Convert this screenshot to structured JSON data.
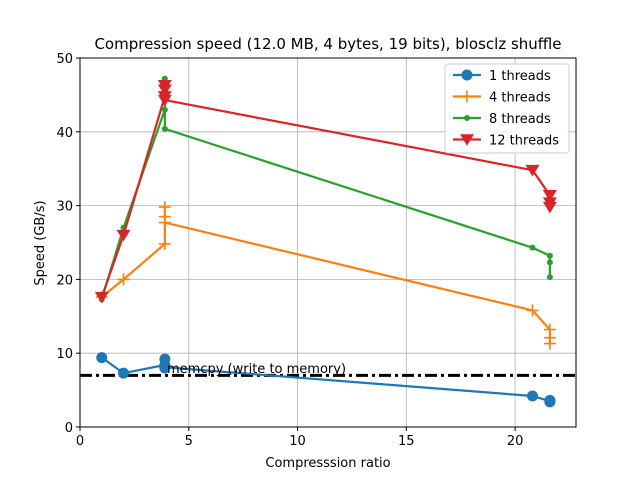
{
  "chart_data": {
    "type": "line",
    "title": "Compression speed (12.0 MB, 4 bytes, 19 bits), blosclz shuffle",
    "xlabel": "Compresssion ratio",
    "ylabel": "Speed (GB/s)",
    "xlim": [
      0,
      22.8
    ],
    "ylim": [
      0,
      50
    ],
    "xticks": [
      0,
      5,
      10,
      15,
      20
    ],
    "yticks": [
      0,
      10,
      20,
      30,
      40,
      50
    ],
    "grid": true,
    "legend_position": "top-right",
    "series": [
      {
        "name": "1 threads",
        "color": "#1f77b4",
        "marker": "circle",
        "x": [
          1.0,
          2.0,
          3.9,
          3.9,
          3.9,
          3.9,
          20.8,
          21.6,
          21.6,
          21.6
        ],
        "y": [
          9.4,
          7.3,
          8.4,
          9.2,
          8.0,
          8.1,
          4.2,
          3.5,
          3.4,
          3.6
        ]
      },
      {
        "name": "4 threads",
        "color": "#ff7f0e",
        "marker": "plus",
        "x": [
          1.0,
          2.0,
          3.9,
          3.9,
          3.9,
          3.9,
          20.8,
          21.6,
          21.6,
          21.6
        ],
        "y": [
          17.6,
          20.0,
          24.8,
          29.8,
          28.5,
          27.7,
          15.8,
          13.2,
          11.3,
          12.1
        ]
      },
      {
        "name": "8 threads",
        "color": "#2ca02c",
        "marker": "dot",
        "x": [
          1.0,
          2.0,
          3.9,
          3.9,
          3.9,
          3.9,
          20.8,
          21.6,
          21.6,
          21.6
        ],
        "y": [
          17.3,
          27.0,
          43.0,
          47.2,
          45.5,
          40.4,
          24.3,
          23.2,
          20.3,
          22.3
        ]
      },
      {
        "name": "12 threads",
        "color": "#d62728",
        "marker": "triangle-down",
        "x": [
          1.0,
          2.0,
          3.9,
          3.9,
          3.9,
          3.9,
          20.8,
          21.6,
          21.6,
          21.6
        ],
        "y": [
          17.6,
          26.0,
          44.8,
          46.3,
          45.7,
          44.3,
          34.8,
          31.4,
          29.8,
          30.4
        ]
      }
    ],
    "reference_line": {
      "label": "memcpy (write to memory)",
      "y": 7.0,
      "color": "#000000",
      "style": "dash-dot"
    }
  }
}
